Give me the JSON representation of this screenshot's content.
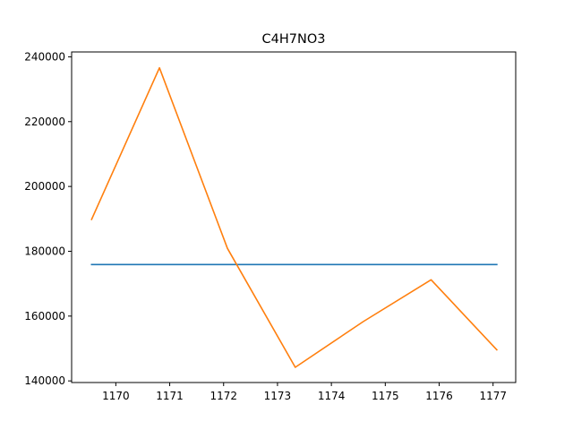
{
  "chart_data": {
    "type": "line",
    "title": "C4H7NO3",
    "xlabel": "",
    "ylabel": "",
    "xlim": [
      1169.18,
      1177.42
    ],
    "ylim": [
      139500,
      241500
    ],
    "x_ticks": [
      1170,
      1171,
      1172,
      1173,
      1174,
      1175,
      1176,
      1177
    ],
    "y_ticks": [
      140000,
      160000,
      180000,
      200000,
      220000,
      240000
    ],
    "grid": false,
    "legend": "none",
    "series": [
      {
        "color": "#1f77b4",
        "x": [
          1169.55,
          1177.07
        ],
        "y": [
          175900,
          175900
        ]
      },
      {
        "color": "#ff7f0e",
        "x": [
          1169.55,
          1170.81,
          1172.07,
          1173.33,
          1174.59,
          1175.85,
          1177.07
        ],
        "y": [
          189800,
          236600,
          180900,
          144200,
          158300,
          171200,
          149600
        ]
      }
    ]
  }
}
